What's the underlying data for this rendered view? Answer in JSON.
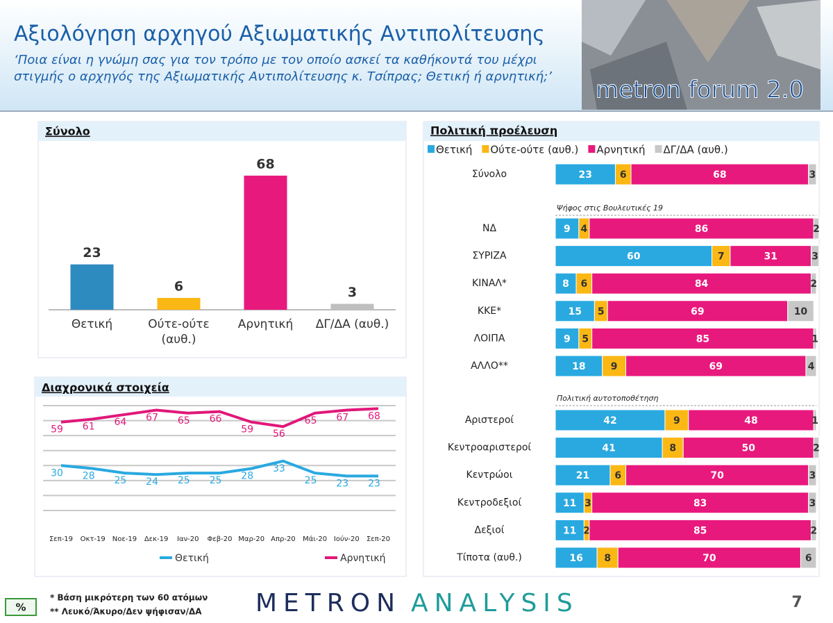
{
  "header": {
    "title": "Αξιολόγηση αρχηγού Αξιωματικής Αντιπολίτευσης",
    "subtitle": [
      "‘Ποια είναι η γνώμη σας για τον τρόπο με τον οποίο ασκεί τα καθήκοντά του μέχρι",
      "στιγμής ο αρχηγός της Αξιωματικής Αντιπολίτευσης κ. Τσίπρας; Θετική ή αρνητική;’"
    ],
    "logo": "metron forum 2.0"
  },
  "chart_data": [
    {
      "type": "bar",
      "title": "Σύνολο",
      "categories": [
        "Θετική",
        "Ούτε-ούτε (αυθ.)",
        "Αρνητική",
        "ΔΓ/ΔΑ (αυθ.)"
      ],
      "values": [
        23,
        6,
        68,
        3
      ],
      "colors": [
        "#2e8bc0",
        "#fbb714",
        "#e8197d",
        "#bfbfbf"
      ],
      "ylim": [
        0,
        75
      ]
    },
    {
      "type": "line",
      "title": "Διαχρονικά στοιχεία",
      "categories": [
        "Σεπ-19",
        "Οκτ-19",
        "Νοε-19",
        "Δεκ-19",
        "Ιαν-20",
        "Φεβ-20",
        "Μαρ-20",
        "Απρ-20",
        "Μάι-20",
        "Ιούν-20",
        "Σεπ-20"
      ],
      "series": [
        {
          "name": "Θετική",
          "color": "#29a9e0",
          "values": [
            30,
            28,
            25,
            24,
            25,
            25,
            28,
            33,
            25,
            23,
            23
          ]
        },
        {
          "name": "Αρνητική",
          "color": "#e0187a",
          "values": [
            59,
            61,
            64,
            67,
            65,
            66,
            59,
            56,
            65,
            67,
            68
          ]
        }
      ],
      "ylim": [
        0,
        70
      ],
      "yticks": [
        0,
        10,
        20,
        30,
        40,
        50,
        60,
        70
      ],
      "grid": true
    },
    {
      "type": "stackedbar",
      "title": "Πολιτική προέλευση",
      "categories": [
        "Σύνολο",
        "ΝΔ",
        "ΣΥΡΙΖΑ",
        "ΚΙΝΑΛ*",
        "ΚΚΕ*",
        "ΛΟΙΠΑ",
        "ΑΛΛΟ**",
        "Αριστεροί",
        "Κεντροαριστεροί",
        "Κεντρώοι",
        "Κεντροδεξιοί",
        "Δεξιοί",
        "Τίποτα (αυθ.)"
      ],
      "annotations": [
        "Ψήφος στις Βουλευτικές 19",
        "Πολιτική αυτοτοποθέτηση"
      ],
      "series": [
        {
          "name": "Θετική",
          "color": "#29a9e0",
          "values": [
            23,
            9,
            60,
            8,
            15,
            9,
            18,
            42,
            41,
            21,
            11,
            11,
            16
          ]
        },
        {
          "name": "Ούτε-ούτε (αυθ.)",
          "color": "#fbb714",
          "values": [
            6,
            4,
            7,
            6,
            5,
            5,
            9,
            9,
            8,
            6,
            3,
            2,
            8
          ]
        },
        {
          "name": "Αρνητική",
          "color": "#e8197d",
          "values": [
            68,
            86,
            31,
            84,
            69,
            85,
            69,
            48,
            50,
            70,
            83,
            85,
            70
          ]
        },
        {
          "name": "ΔΓ/ΔΑ (αυθ.)",
          "color": "#c8c8c8",
          "values": [
            3,
            2,
            3,
            2,
            10,
            1,
            4,
            1,
            2,
            3,
            3,
            2,
            6
          ]
        }
      ],
      "xlim": [
        0,
        100
      ]
    }
  ],
  "footer": {
    "notes": [
      "*  Βάση μικρότερη των 60 ατόμων",
      "** Λευκό/Άκυρο/Δεν ψήφισαν/ΔΑ"
    ],
    "badge": "%",
    "brand": [
      "METRON",
      "ANALYSIS"
    ],
    "page": "7"
  }
}
